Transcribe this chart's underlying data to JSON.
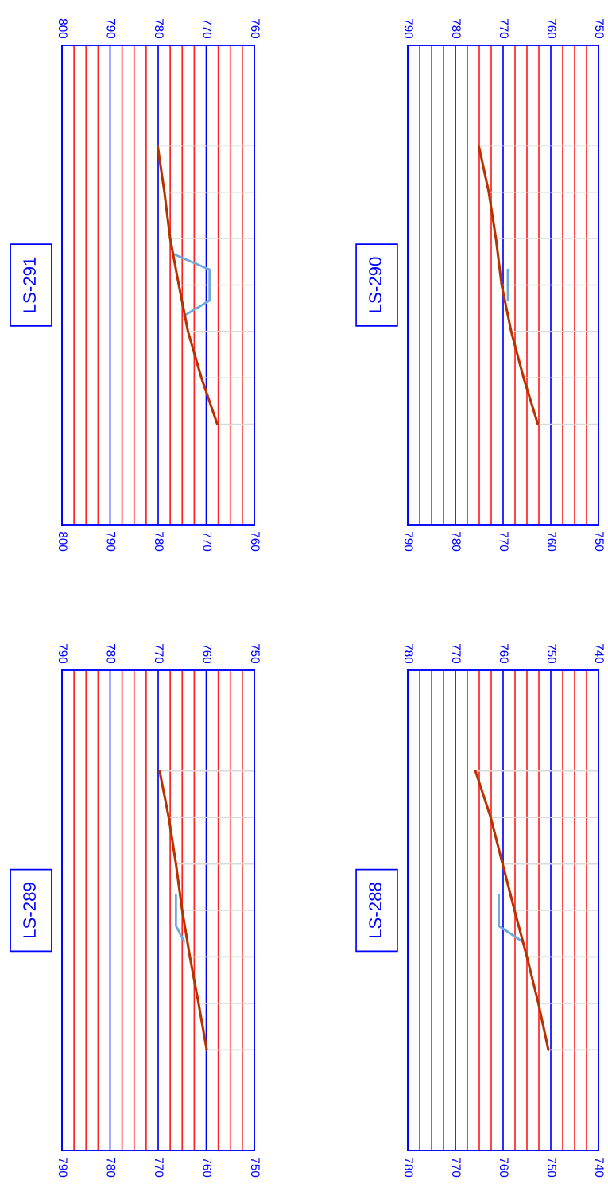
{
  "chart_data": [
    {
      "type": "line",
      "title": "LS-289",
      "orientation": "horizontal",
      "categories": [
        null,
        null,
        null,
        null,
        null,
        null,
        null,
        null,
        null,
        null,
        null,
        null,
        null,
        null,
        null,
        null,
        null,
        null,
        null,
        null,
        null,
        null,
        null,
        null,
        null,
        null,
        null,
        null,
        null,
        null,
        null
      ],
      "xlim": [
        790,
        750
      ],
      "xticks": [
        790,
        {
          "value": 787.5,
          "label": null
        },
        {
          "value": 785,
          "label": null
        },
        {
          "value": 782.5,
          "label": null
        },
        780,
        {
          "value": 777.5,
          "label": null
        },
        {
          "value": 775,
          "label": null
        },
        {
          "value": 772.5,
          "label": null
        },
        770,
        {
          "value": 767.5,
          "label": null
        },
        {
          "value": 765,
          "label": null
        },
        {
          "value": 762.5,
          "label": null
        },
        760,
        {
          "value": 757.5,
          "label": null
        },
        {
          "value": 755,
          "label": null
        },
        {
          "value": 752.5,
          "label": null
        },
        750
      ],
      "x2lim": [
        790,
        750
      ],
      "x2ticks": [
        790,
        780,
        770,
        760,
        750
      ],
      "grid": true,
      "tick_labels": "x",
      "series": [
        {
          "color": "#b83200",
          "values": [
            null,
            null,
            null,
            null,
            null,
            null,
            769.7,
            null,
            null,
            767.8,
            null,
            null,
            766.3,
            null,
            null,
            765.0,
            null,
            null,
            763.4,
            null,
            null,
            761.6,
            null,
            null,
            759.9,
            null,
            null,
            null,
            null,
            null,
            null
          ],
          "errors": [
            null,
            null,
            null,
            null,
            null,
            null,
            [
              750,
              769.7
            ],
            null,
            null,
            [
              750,
              767.8
            ],
            null,
            null,
            [
              750,
              766.3
            ],
            null,
            null,
            [
              750,
              765.0
            ],
            null,
            null,
            [
              750,
              763.4
            ],
            null,
            null,
            [
              750,
              761.6
            ],
            null,
            null,
            [
              750,
              759.9
            ],
            null,
            null,
            null,
            null,
            null,
            null
          ]
        },
        {
          "color": "#6fa8dc",
          "values": [
            null,
            null,
            null,
            null,
            null,
            null,
            null,
            null,
            null,
            null,
            null,
            null,
            null,
            null,
            766.3,
            null,
            766.3,
            764.6,
            null,
            null,
            null,
            null,
            null,
            null,
            null,
            null,
            null,
            null,
            null,
            null,
            null
          ]
        }
      ]
    },
    {
      "type": "line",
      "title": "LS-291",
      "orientation": "horizontal",
      "categories": [
        null,
        null,
        null,
        null,
        null,
        null,
        null,
        null,
        null,
        null,
        null,
        null,
        null,
        null,
        null,
        null,
        null,
        null,
        null,
        null,
        null,
        null,
        null,
        null,
        null,
        null,
        null,
        null,
        null,
        null,
        null
      ],
      "xlim": [
        800,
        760
      ],
      "xticks": [
        800,
        {
          "value": 797.5,
          "label": null
        },
        {
          "value": 795,
          "label": null
        },
        {
          "value": 792.5,
          "label": null
        },
        790,
        {
          "value": 787.5,
          "label": null
        },
        {
          "value": 785,
          "label": null
        },
        {
          "value": 782.5,
          "label": null
        },
        780,
        {
          "value": 777.5,
          "label": null
        },
        {
          "value": 775,
          "label": null
        },
        {
          "value": 772.5,
          "label": null
        },
        770,
        {
          "value": 767.5,
          "label": null
        },
        {
          "value": 765,
          "label": null
        },
        {
          "value": 762.5,
          "label": null
        },
        760
      ],
      "x2lim": [
        800,
        760
      ],
      "x2ticks": [
        800,
        790,
        780,
        770,
        760
      ],
      "grid": true,
      "tick_labels": "x",
      "series": [
        {
          "color": "#b83200",
          "values": [
            null,
            null,
            null,
            null,
            null,
            null,
            780.1,
            null,
            null,
            778.7,
            null,
            null,
            777.5,
            null,
            null,
            775.7,
            null,
            null,
            773.8,
            null,
            null,
            771.0,
            null,
            null,
            767.7,
            null,
            null,
            null,
            null,
            null,
            null
          ],
          "errors": [
            null,
            null,
            null,
            null,
            null,
            null,
            [
              760,
              780.1
            ],
            null,
            null,
            [
              760,
              778.7
            ],
            null,
            null,
            [
              760,
              777.5
            ],
            null,
            null,
            [
              760,
              775.7
            ],
            null,
            null,
            [
              760,
              773.8
            ],
            null,
            null,
            [
              760,
              771.0
            ],
            null,
            null,
            [
              760,
              767.7
            ],
            null,
            null,
            null,
            null,
            null,
            null
          ]
        },
        {
          "color": "#6fa8dc",
          "values": [
            null,
            null,
            null,
            null,
            null,
            null,
            null,
            null,
            null,
            null,
            null,
            null,
            null,
            776.8,
            769.3,
            null,
            769.3,
            774.7,
            null,
            null,
            null,
            null,
            null,
            null,
            null,
            null,
            null,
            null,
            null,
            null,
            null
          ]
        }
      ]
    },
    {
      "type": "line",
      "title": "LS-288",
      "orientation": "horizontal",
      "categories": [
        null,
        null,
        null,
        null,
        null,
        null,
        null,
        null,
        null,
        null,
        null,
        null,
        null,
        null,
        null,
        null,
        null,
        null,
        null,
        null,
        null,
        null,
        null,
        null,
        null,
        null,
        null,
        null,
        null,
        null,
        null
      ],
      "xlim": [
        780,
        740
      ],
      "xticks": [
        780,
        {
          "value": 777.5,
          "label": null
        },
        {
          "value": 775,
          "label": null
        },
        {
          "value": 772.5,
          "label": null
        },
        770,
        {
          "value": 767.5,
          "label": null
        },
        {
          "value": 765,
          "label": null
        },
        {
          "value": 762.5,
          "label": null
        },
        760,
        {
          "value": 757.5,
          "label": null
        },
        {
          "value": 755,
          "label": null
        },
        {
          "value": 752.5,
          "label": null
        },
        750,
        {
          "value": 747.5,
          "label": null
        },
        {
          "value": 745,
          "label": null
        },
        {
          "value": 742.5,
          "label": null
        },
        740
      ],
      "x2lim": [
        780,
        740
      ],
      "x2ticks": [
        780,
        770,
        760,
        750,
        740
      ],
      "grid": true,
      "tick_labels": "x",
      "series": [
        {
          "color": "#b83200",
          "values": [
            null,
            null,
            null,
            null,
            null,
            null,
            765.8,
            null,
            null,
            762.6,
            null,
            null,
            760.1,
            null,
            null,
            757.6,
            null,
            null,
            755.0,
            null,
            null,
            752.6,
            null,
            null,
            750.5,
            null,
            null,
            null,
            null,
            null,
            null
          ],
          "errors": [
            null,
            null,
            null,
            null,
            null,
            null,
            [
              740,
              765.8
            ],
            null,
            null,
            [
              740,
              762.6
            ],
            null,
            null,
            [
              740,
              760.1
            ],
            null,
            null,
            [
              740,
              757.6
            ],
            null,
            null,
            [
              740,
              755.0
            ],
            null,
            null,
            [
              740,
              752.6
            ],
            null,
            null,
            [
              740,
              750.5
            ],
            null,
            null,
            null,
            null,
            null,
            null
          ]
        },
        {
          "color": "#6fa8dc",
          "values": [
            null,
            null,
            null,
            null,
            null,
            null,
            null,
            null,
            null,
            null,
            null,
            null,
            null,
            null,
            760.9,
            null,
            760.9,
            756.0,
            null,
            null,
            null,
            null,
            null,
            null,
            null,
            null,
            null,
            null,
            null,
            null,
            null
          ]
        }
      ]
    },
    {
      "type": "line",
      "title": "LS-290",
      "orientation": "horizontal",
      "categories": [
        null,
        null,
        null,
        null,
        null,
        null,
        null,
        null,
        null,
        null,
        null,
        null,
        null,
        null,
        null,
        null,
        null,
        null,
        null,
        null,
        null,
        null,
        null,
        null,
        null,
        null,
        null,
        null,
        null,
        null,
        null
      ],
      "xlim": [
        790,
        750
      ],
      "xticks": [
        790,
        {
          "value": 787.5,
          "label": null
        },
        {
          "value": 785,
          "label": null
        },
        {
          "value": 782.5,
          "label": null
        },
        780,
        {
          "value": 777.5,
          "label": null
        },
        {
          "value": 775,
          "label": null
        },
        {
          "value": 772.5,
          "label": null
        },
        770,
        {
          "value": 767.5,
          "label": null
        },
        {
          "value": 765,
          "label": null
        },
        {
          "value": 762.5,
          "label": null
        },
        760,
        {
          "value": 757.5,
          "label": null
        },
        {
          "value": 755,
          "label": null
        },
        {
          "value": 752.5,
          "label": null
        },
        750
      ],
      "x2lim": [
        790,
        750
      ],
      "x2ticks": [
        790,
        780,
        770,
        760,
        750
      ],
      "grid": true,
      "tick_labels": "x",
      "series": [
        {
          "color": "#b83200",
          "values": [
            null,
            null,
            null,
            null,
            null,
            null,
            775.1,
            null,
            null,
            773.0,
            null,
            null,
            771.5,
            null,
            null,
            770.3,
            null,
            null,
            768.3,
            null,
            null,
            765.7,
            null,
            null,
            762.7,
            null,
            null,
            null,
            null,
            null,
            null
          ],
          "errors": [
            null,
            null,
            null,
            null,
            null,
            null,
            [
              750,
              775.1
            ],
            null,
            null,
            [
              750,
              773.0
            ],
            null,
            null,
            [
              750,
              771.5
            ],
            null,
            null,
            [
              750,
              770.3
            ],
            null,
            null,
            [
              750,
              768.3
            ],
            null,
            null,
            [
              750,
              765.7
            ],
            null,
            null,
            [
              750,
              762.7
            ],
            null,
            null,
            null,
            null,
            null,
            null
          ]
        },
        {
          "color": "#6fa8dc",
          "values": [
            null,
            null,
            null,
            null,
            null,
            null,
            null,
            null,
            null,
            null,
            null,
            null,
            null,
            null,
            769.0,
            null,
            769.0,
            null,
            null,
            null,
            null,
            null,
            null,
            null,
            null,
            null,
            null,
            null,
            null,
            null,
            null
          ]
        }
      ]
    }
  ]
}
